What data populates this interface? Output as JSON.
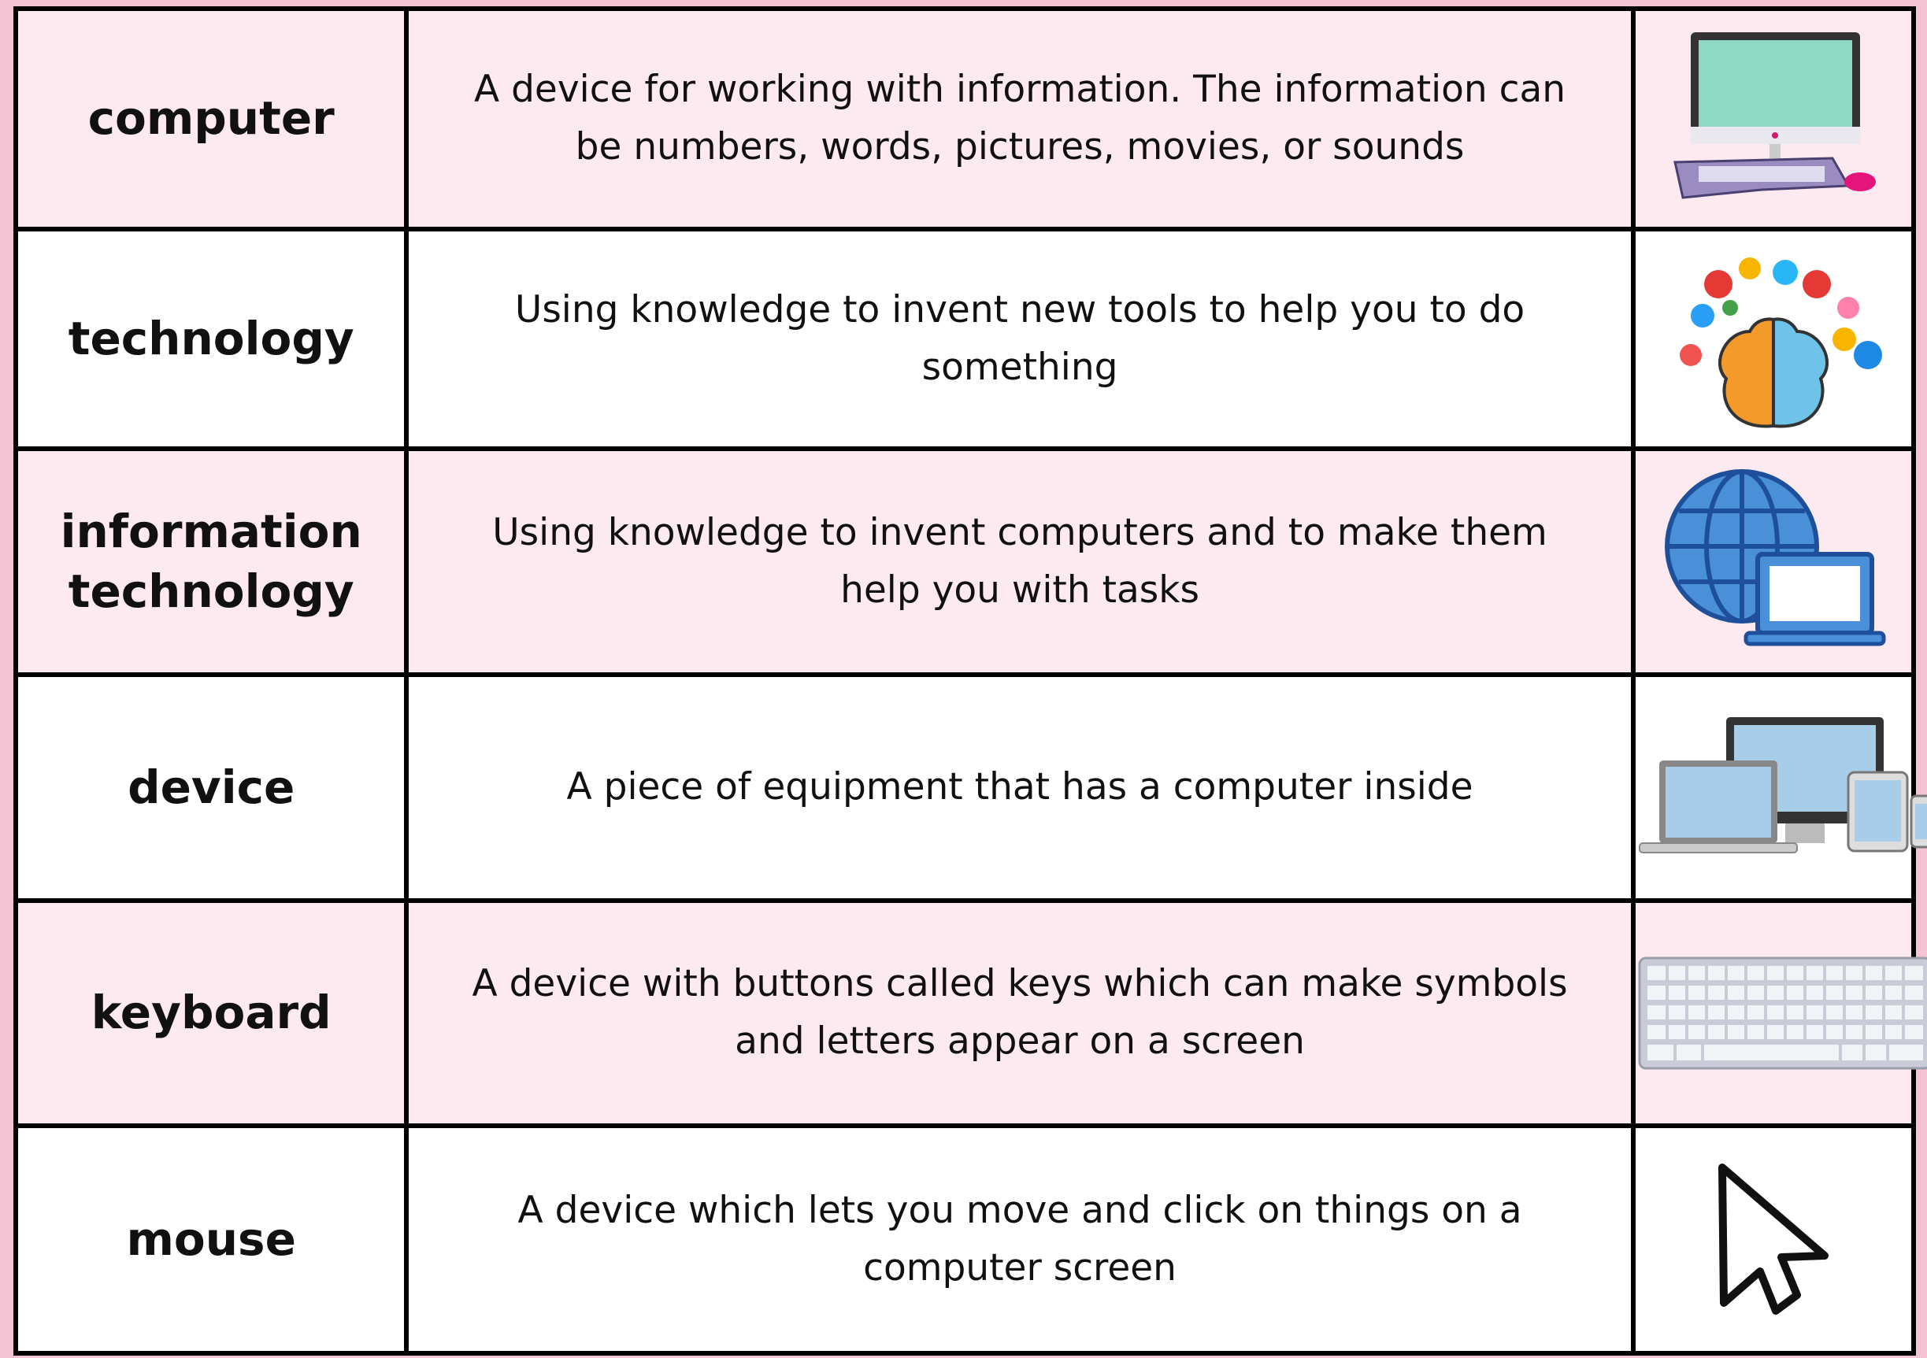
{
  "table": {
    "rows": [
      [
        "computer",
        "A device for working with information. The information can be numbers, words, pictures, movies, or sounds"
      ],
      [
        "technology",
        "Using knowledge to invent new tools to help you to do something"
      ],
      [
        "information technology",
        "Using knowledge to invent computers and to make them help you with tasks"
      ],
      [
        "device",
        "A piece of equipment that has a computer inside"
      ],
      [
        "keyboard",
        "A device with buttons called keys which can make symbols and letters appear on a screen"
      ],
      [
        "mouse",
        "A device which lets you move and click on things on a computer screen"
      ]
    ]
  }
}
